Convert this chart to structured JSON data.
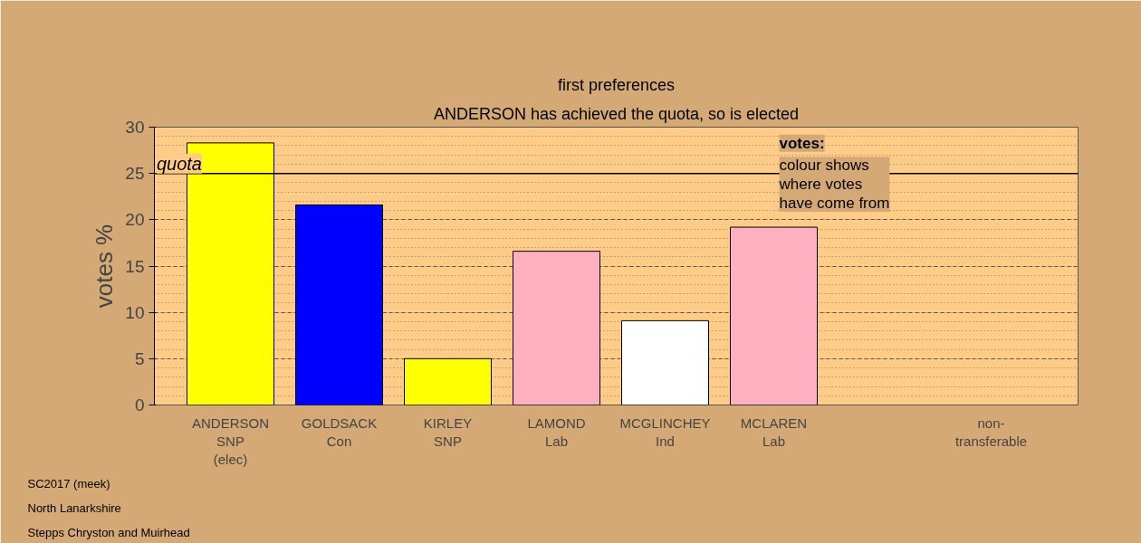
{
  "chart_data": {
    "type": "bar",
    "title": "first preferences",
    "subtitle": "ANDERSON has achieved the quota, so is elected",
    "ylabel": "votes %",
    "categories": [
      "ANDERSON\nSNP\n(elec)",
      "GOLDSACK\nCon",
      "KIRLEY\nSNP",
      "LAMOND\nLab",
      "MCGLINCHEY\nInd",
      "MCLAREN\nLab",
      null,
      "non-\ntransferable"
    ],
    "values": [
      28.3,
      21.6,
      5.0,
      16.6,
      9.1,
      19.2,
      null,
      null
    ],
    "colors": [
      "#ffff00",
      "#0000ff",
      "#ffff00",
      "#ffb0c0",
      "#ffffff",
      "#ffb0c0",
      "#ffffff",
      "#ffffff"
    ],
    "ylim": [
      0,
      30
    ],
    "yticks": [
      0,
      5,
      10,
      15,
      20,
      25,
      30
    ],
    "grid": "y",
    "ref_lines": [
      {
        "axis": "y",
        "value": 25,
        "label": "quota",
        "color": "#000000"
      }
    ],
    "annotations": [
      "votes:",
      "colour shows\nwhere votes\nhave come from",
      "SC2017 (meek)\nNorth Lanarkshire\nStepps Chryston and Muirhead"
    ]
  }
}
